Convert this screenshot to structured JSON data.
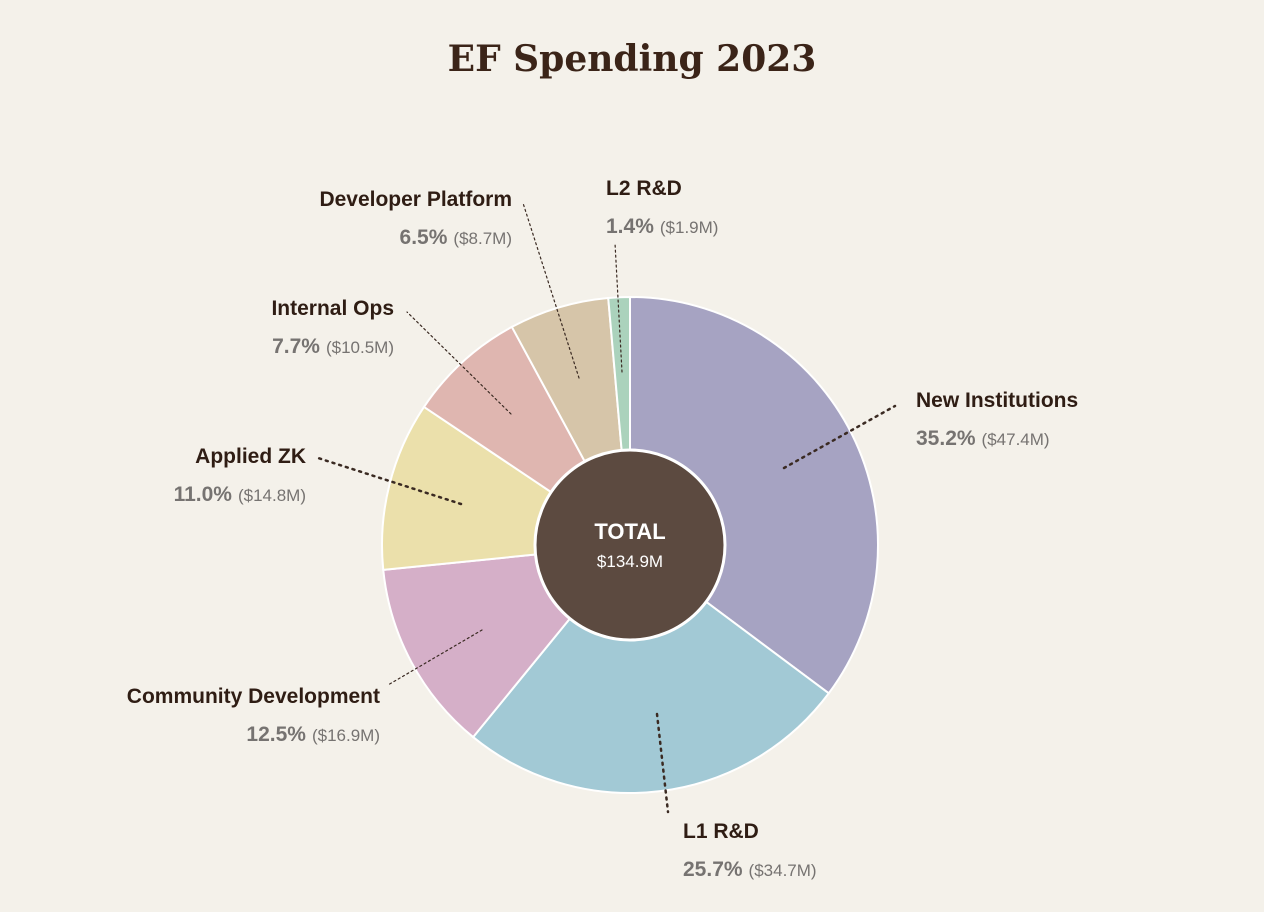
{
  "chart_data": {
    "type": "pie",
    "title": "EF Spending 2023",
    "center": {
      "label": "TOTAL",
      "value": "$134.9M"
    },
    "slices": [
      {
        "name": "New Institutions",
        "percent": 35.2,
        "percent_label": "35.2%",
        "amount": "($47.4M)",
        "color": "#a6a3c2"
      },
      {
        "name": "L1 R&D",
        "percent": 25.7,
        "percent_label": "25.7%",
        "amount": "($34.7M)",
        "color": "#a2c9d5"
      },
      {
        "name": "Community Development",
        "percent": 12.5,
        "percent_label": "12.5%",
        "amount": "($16.9M)",
        "color": "#d5afc8"
      },
      {
        "name": "Applied ZK",
        "percent": 11.0,
        "percent_label": "11.0%",
        "amount": "($14.8M)",
        "color": "#ebe0ab"
      },
      {
        "name": "Internal Ops",
        "percent": 7.7,
        "percent_label": "7.7%",
        "amount": "($10.5M)",
        "color": "#dfb6b0"
      },
      {
        "name": "Developer Platform",
        "percent": 6.5,
        "percent_label": "6.5%",
        "amount": "($8.7M)",
        "color": "#d6c5a9"
      },
      {
        "name": "L2 R&D",
        "percent": 1.4,
        "percent_label": "1.4%",
        "amount": "($1.9M)",
        "color": "#abd2bc"
      }
    ]
  },
  "colors": {
    "background": "#f4f1ea",
    "center_fill": "#5c4a40",
    "title": "#3b2418"
  }
}
